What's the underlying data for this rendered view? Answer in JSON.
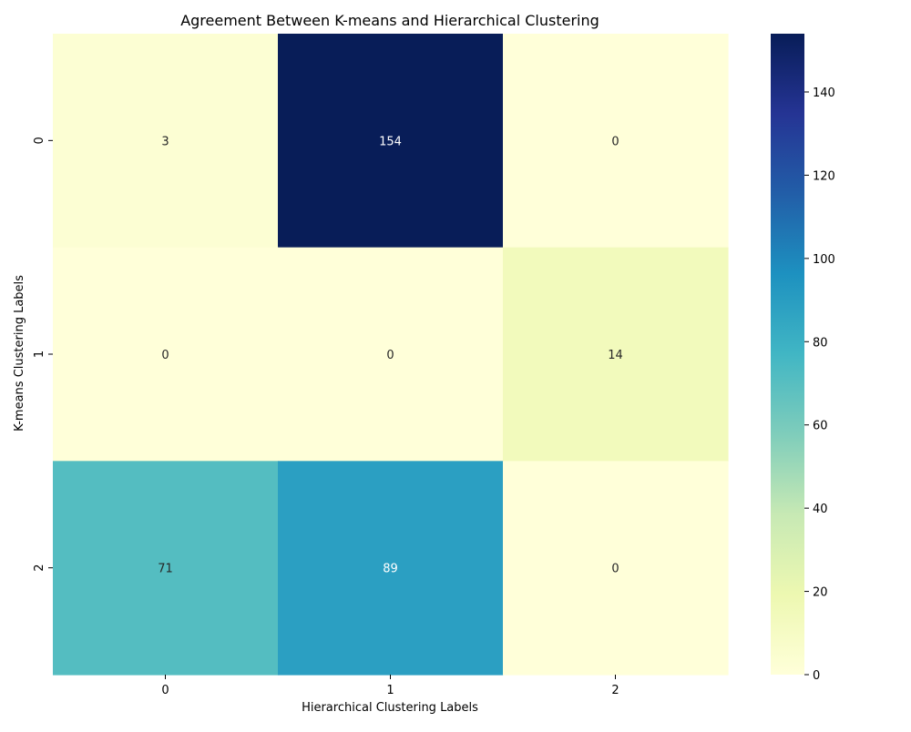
{
  "chart_data": {
    "type": "heatmap",
    "title": "Agreement Between K-means and Hierarchical Clustering",
    "xlabel": "Hierarchical Clustering Labels",
    "ylabel": "K-means Clustering Labels",
    "x_categories": [
      "0",
      "1",
      "2"
    ],
    "y_categories": [
      "0",
      "1",
      "2"
    ],
    "values": [
      [
        3,
        154,
        0
      ],
      [
        0,
        0,
        14
      ],
      [
        71,
        89,
        0
      ]
    ],
    "colormap": "YlGnBu",
    "vmin": 0,
    "vmax": 154,
    "colorbar_ticks": [
      "0",
      "20",
      "40",
      "60",
      "80",
      "100",
      "120",
      "140"
    ],
    "annotated": true,
    "grid": false
  }
}
